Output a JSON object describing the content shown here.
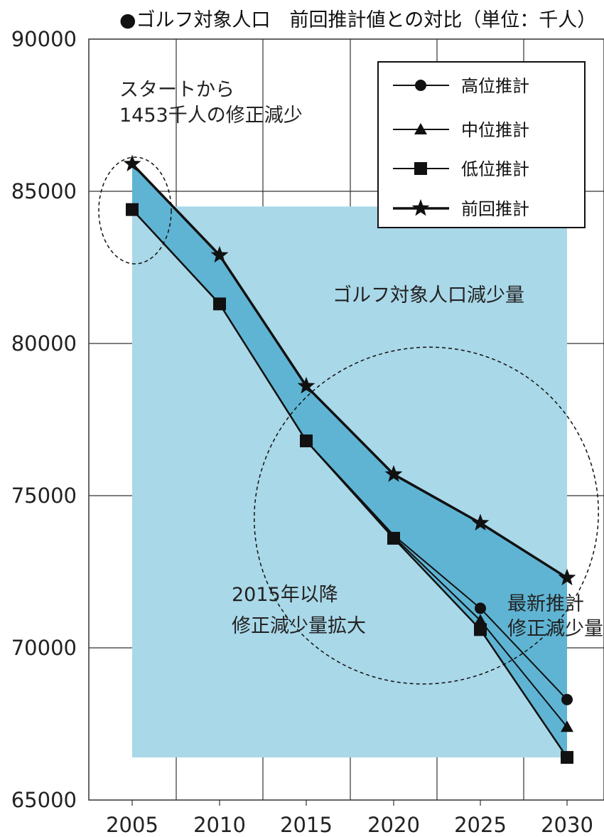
{
  "chart_data": {
    "type": "line",
    "title": "●ゴルフ対象人口　前回推計値との対比（単位：千人）",
    "x": [
      2005,
      2010,
      2015,
      2020,
      2025,
      2030
    ],
    "x_tick_labels": [
      "2005",
      "2010",
      "2015",
      "2020",
      "2025",
      "2030"
    ],
    "ylim": [
      65000,
      90000
    ],
    "y_ticks": [
      65000,
      70000,
      75000,
      80000,
      85000,
      90000
    ],
    "y_tick_labels": [
      "65000",
      "70000",
      "75000",
      "80000",
      "85000",
      "90000"
    ],
    "grid": true,
    "legend_position": "top-right",
    "series": [
      {
        "name": "高位推計",
        "marker": "circle",
        "values": [
          84400,
          81300,
          76800,
          73700,
          71300,
          68300
        ]
      },
      {
        "name": "中位推計",
        "marker": "triangle",
        "values": [
          84400,
          81300,
          76800,
          73650,
          70900,
          67400
        ]
      },
      {
        "name": "低位推計",
        "marker": "square",
        "values": [
          84400,
          81300,
          76800,
          73600,
          70600,
          66400
        ]
      },
      {
        "name": "前回推計",
        "marker": "star",
        "values": [
          85900,
          82900,
          78600,
          75700,
          74100,
          72300
        ]
      }
    ],
    "annotations": {
      "start": [
        "スタートから",
        "1453千人の修正減少"
      ],
      "area": [
        "ゴルフ対象人口減少量"
      ],
      "after2015": [
        "2015年以降",
        "修正減少量拡大"
      ],
      "latest": [
        "最新推計",
        "修正減少量"
      ]
    },
    "colors": {
      "shade_light": "#a9d8e8",
      "shade_dark": "#5fb4d3",
      "line": "#111111",
      "grid": "#333333"
    }
  }
}
